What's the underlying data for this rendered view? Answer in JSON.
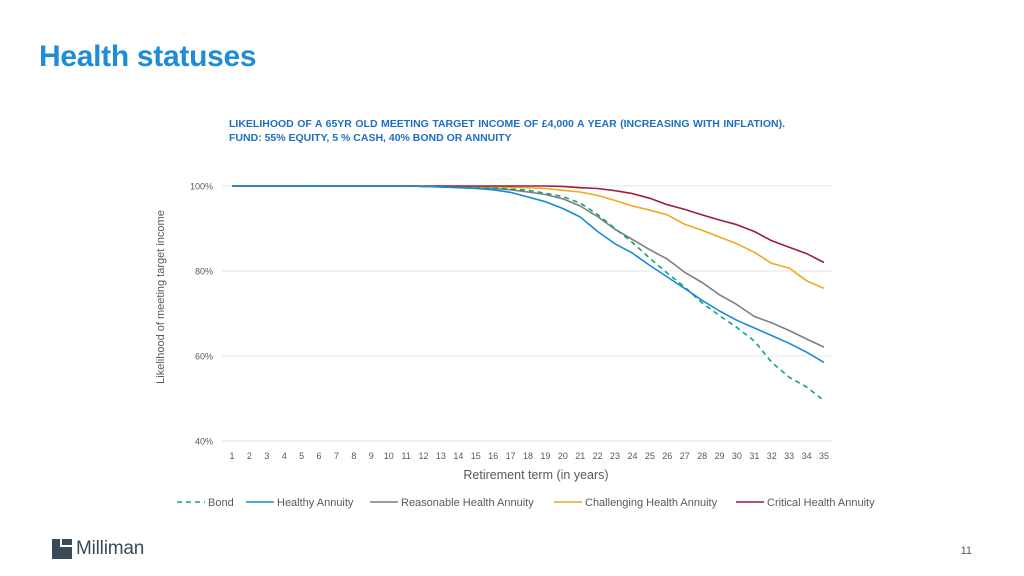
{
  "page": {
    "title": "Health statuses",
    "page_number": "11",
    "brand": "Milliman"
  },
  "colors": {
    "title": "#1f8dd6",
    "chart_title": "#1f6fc0",
    "bond": "#12a37a",
    "healthy": "#1a8bd3",
    "reasonable": "#7f7f7f",
    "challenging": "#f2a81d",
    "critical": "#9b1c47",
    "grid": "#e6e6e6"
  },
  "chart_data": {
    "type": "line",
    "title": "LIKELIHOOD OF A 65YR OLD MEETING TARGET INCOME OF £4,000 A YEAR (INCREASING WITH INFLATION). FUND: 55% EQUITY, 5 % CASH, 40% BOND OR ANNUITY",
    "xlabel": "Retirement term (in years)",
    "ylabel": "Likelihood of meeting target income",
    "x": [
      1,
      2,
      3,
      4,
      5,
      6,
      7,
      8,
      9,
      10,
      11,
      12,
      13,
      14,
      15,
      16,
      17,
      18,
      19,
      20,
      21,
      22,
      23,
      24,
      25,
      26,
      27,
      28,
      29,
      30,
      31,
      32,
      33,
      34,
      35
    ],
    "yticks": [
      "40%",
      "60%",
      "80%",
      "100%"
    ],
    "ylim": [
      40,
      100
    ],
    "grid": true,
    "legend_position": "bottom",
    "series": [
      {
        "name": "Bond",
        "style": "dashed",
        "color_key": "bond",
        "values": [
          100,
          100,
          100,
          100,
          100,
          100,
          100,
          100,
          100,
          100,
          100,
          99.9,
          99.8,
          99.7,
          99.6,
          99.5,
          99.3,
          99.0,
          98.3,
          97.5,
          96.0,
          93.3,
          90.0,
          86.7,
          83.0,
          79.5,
          76.2,
          72.5,
          69.5,
          66.7,
          63.5,
          58.5,
          55.0,
          52.7,
          49.5
        ]
      },
      {
        "name": "Healthy Annuity",
        "style": "solid",
        "color_key": "healthy",
        "values": [
          100,
          100,
          100,
          100,
          100,
          100,
          100,
          100,
          100,
          100,
          100,
          99.9,
          99.8,
          99.6,
          99.4,
          99.1,
          98.5,
          97.4,
          96.3,
          94.7,
          92.7,
          89.3,
          86.4,
          84.2,
          81.3,
          78.6,
          75.9,
          73.1,
          70.6,
          68.4,
          66.6,
          64.8,
          63.0,
          60.9,
          58.5
        ]
      },
      {
        "name": "Reasonable Health Annuity",
        "style": "solid",
        "color_key": "reasonable",
        "values": [
          100,
          100,
          100,
          100,
          100,
          100,
          100,
          100,
          100,
          100,
          100,
          99.9,
          99.8,
          99.7,
          99.6,
          99.4,
          99.1,
          98.6,
          98.0,
          97.0,
          95.3,
          92.8,
          89.8,
          87.4,
          85.0,
          82.8,
          79.7,
          77.3,
          74.4,
          72.1,
          69.3,
          67.8,
          66.0,
          64.0,
          62.1
        ]
      },
      {
        "name": "Challenging Health Annuity",
        "style": "solid",
        "color_key": "challenging",
        "values": [
          100,
          100,
          100,
          100,
          100,
          100,
          100,
          100,
          100,
          100,
          100,
          100,
          100,
          99.9,
          99.9,
          99.8,
          99.7,
          99.6,
          99.4,
          99.0,
          98.6,
          97.8,
          96.6,
          95.3,
          94.3,
          93.2,
          91.0,
          89.6,
          88.0,
          86.4,
          84.4,
          81.8,
          80.7,
          77.7,
          75.9
        ]
      },
      {
        "name": "Critical Health Annuity",
        "style": "solid",
        "color_key": "critical",
        "values": [
          100,
          100,
          100,
          100,
          100,
          100,
          100,
          100,
          100,
          100,
          100,
          100,
          100,
          100,
          100,
          100,
          100,
          100,
          100,
          99.9,
          99.6,
          99.4,
          98.9,
          98.2,
          97.1,
          95.6,
          94.5,
          93.2,
          92.0,
          90.9,
          89.3,
          87.1,
          85.6,
          84.1,
          82.0
        ]
      }
    ]
  }
}
